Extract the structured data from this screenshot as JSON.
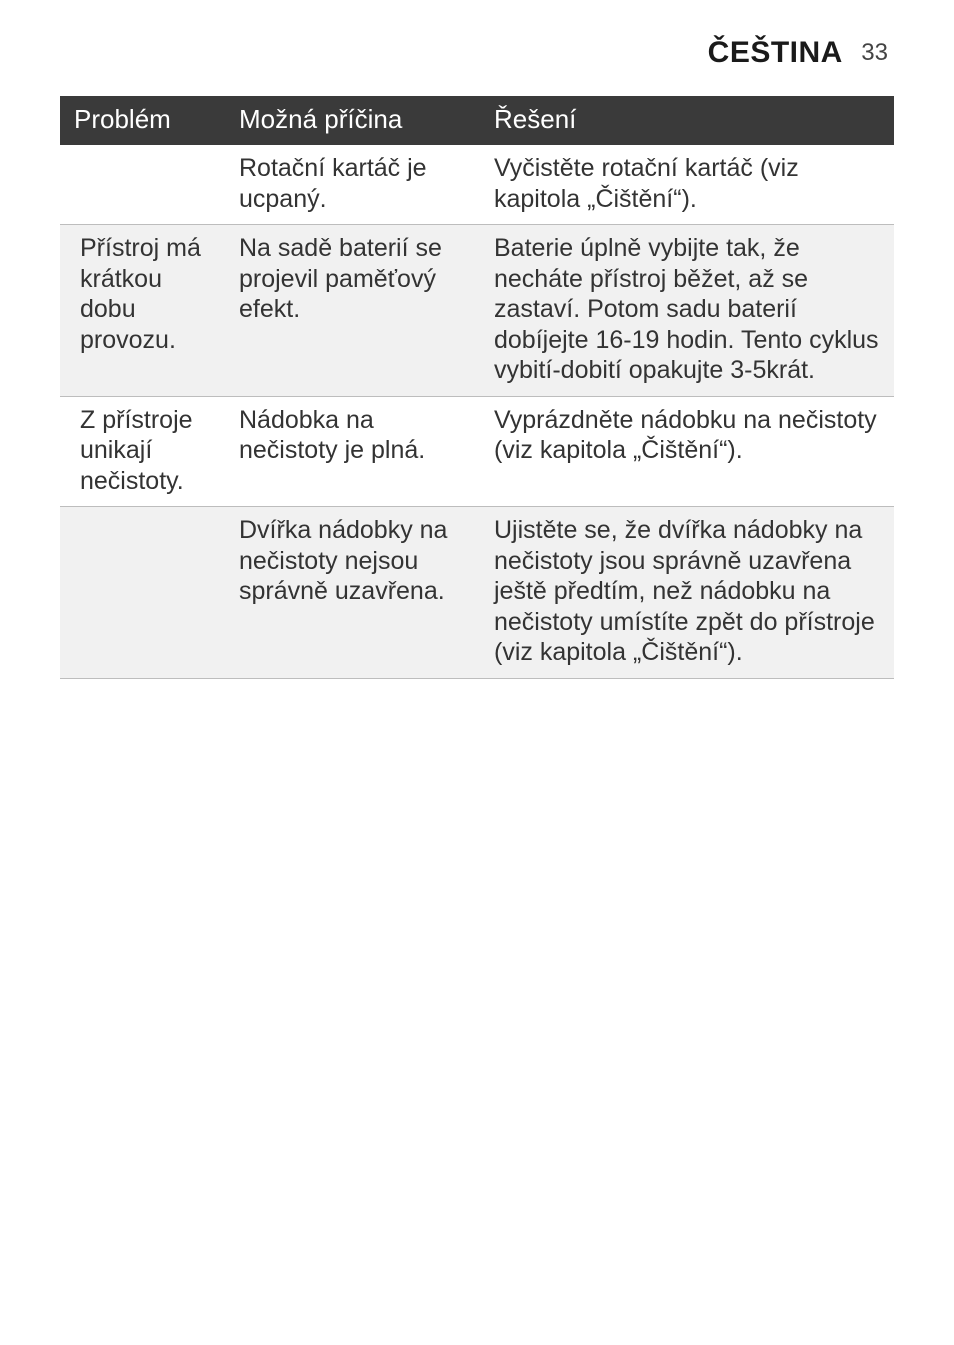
{
  "header": {
    "language": "ČEŠTINA",
    "page_number": "33"
  },
  "table": {
    "columns": {
      "problem": "Problém",
      "cause": "Možná příčina",
      "solution": "Řešení"
    },
    "rows": [
      {
        "problem": "",
        "cause": "Rotační kartáč je ucpaný.",
        "solution": "Vyčistěte rotační kartáč (viz kapitola „Čištění“)."
      },
      {
        "problem": " Přístroj má krátkou dobu provozu.",
        "cause": "Na sadě baterií se projevil paměťový efekt.",
        "solution": "Baterie úplně vybijte tak, že necháte přístroj běžet, až se zastaví. Potom sadu baterií dobíjejte 16-19 hodin. Tento cyklus vybití-dobití opakujte 3-5krát."
      },
      {
        "problem": "Z přístroje unikají nečistoty.",
        "cause": "Nádobka na nečistoty je plná.",
        "solution": "Vyprázdněte nádobku na nečistoty (viz kapitola „Čištění“)."
      },
      {
        "problem": "",
        "cause": "Dvířka nádobky na nečistoty nejsou správně uzavřena.",
        "solution": "Ujistěte se, že dvířka nádobky na nečistoty jsou správně uzavřena ještě předtím, než nádobku na nečistoty umístíte zpět do přístroje (viz kapitola „Čištění“)."
      }
    ]
  },
  "style": {
    "header_bg": "#3a3a3a",
    "header_fg": "#ffffff",
    "row_alt_bg": "#f1f1f1",
    "border_color": "#bdbdbd",
    "body_font_size": 25,
    "header_font_size": 26,
    "title_font_size": 30,
    "pagenum_font_size": 24
  }
}
